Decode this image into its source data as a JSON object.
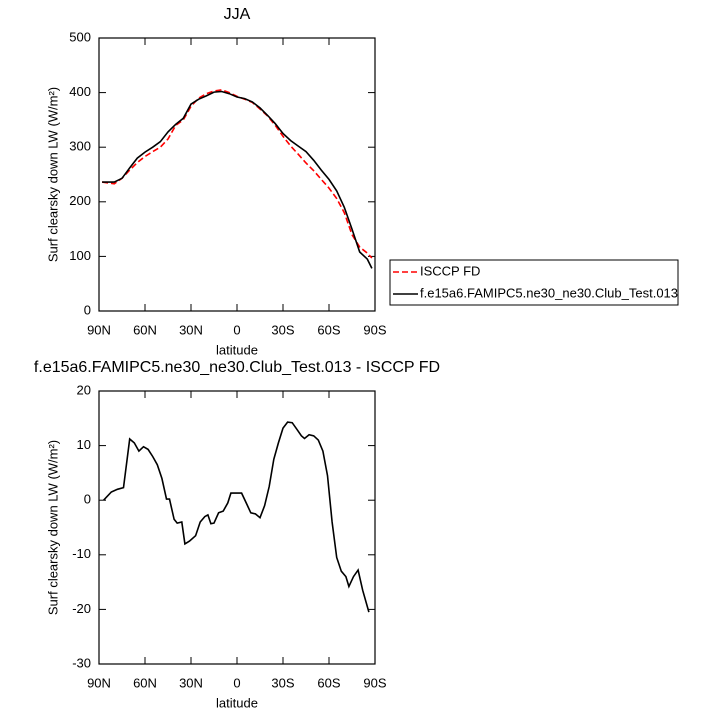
{
  "chart_data": [
    {
      "type": "line",
      "title": "JJA",
      "x_label": "latitude",
      "y_label": "Surf clearsky down LW (W/m²)",
      "x": [
        88,
        80,
        75,
        70,
        65,
        60,
        55,
        50,
        45,
        40,
        35,
        30,
        25,
        20,
        15,
        10,
        5,
        0,
        -5,
        -10,
        -15,
        -20,
        -25,
        -30,
        -35,
        -40,
        -45,
        -50,
        -55,
        -60,
        -65,
        -70,
        -75,
        -80,
        -85,
        -88
      ],
      "series": [
        {
          "name": "ISCCP FD",
          "color": "#ff0000",
          "dash": true,
          "values": [
            236,
            233,
            243,
            258,
            272,
            283,
            292,
            300,
            315,
            340,
            350,
            375,
            390,
            398,
            403,
            405,
            400,
            393,
            388,
            382,
            370,
            357,
            340,
            320,
            302,
            287,
            271,
            257,
            241,
            225,
            206,
            180,
            140,
            117,
            106,
            97
          ]
        },
        {
          "name": "f.e15a6.FAMIPC5.ne30_ne30.Club_Test.013",
          "color": "#000000",
          "dash": false,
          "values": [
            236,
            236,
            243,
            262,
            280,
            291,
            300,
            310,
            328,
            342,
            353,
            379,
            388,
            394,
            401,
            402,
            398,
            392,
            389,
            383,
            372,
            358,
            343,
            325,
            312,
            302,
            292,
            276,
            258,
            241,
            220,
            190,
            150,
            108,
            95,
            78
          ]
        }
      ],
      "xlim": [
        90,
        -90
      ],
      "xticks": [
        {
          "value": 90,
          "label": "90N"
        },
        {
          "value": 60,
          "label": "60N"
        },
        {
          "value": 30,
          "label": "30N"
        },
        0,
        {
          "value": -30,
          "label": "30S"
        },
        {
          "value": -60,
          "label": "60S"
        },
        {
          "value": -90,
          "label": "90S"
        }
      ],
      "ylim": [
        0,
        500
      ],
      "yticks": [
        0,
        100,
        200,
        300,
        400,
        500
      ],
      "legend": "right"
    },
    {
      "type": "line",
      "title": "f.e15a6.FAMIPC5.ne30_ne30.Club_Test.013 - ISCCP FD",
      "x_label": "latitude",
      "y_label": "Surf clearsky down LW (W/m²)",
      "x": [
        87,
        82,
        78,
        74,
        70,
        67,
        64,
        61,
        58,
        55,
        52,
        49,
        46,
        44,
        41,
        39,
        36,
        34,
        31,
        27,
        24,
        21,
        19,
        17,
        15,
        12,
        9,
        6,
        4,
        0,
        -3,
        -6,
        -9,
        -12,
        -15,
        -18,
        -21,
        -24,
        -27,
        -30,
        -33,
        -36,
        -39,
        -42,
        -44,
        -47,
        -50,
        -53,
        -56,
        -59,
        -62,
        -65,
        -68,
        -71,
        -73,
        -76,
        -79,
        -82,
        -86
      ],
      "series": [
        {
          "color": "#000000",
          "dash": false,
          "values": [
            0,
            1.5,
            2.0,
            2.3,
            11.2,
            10.5,
            9.0,
            9.8,
            9.3,
            8.0,
            6.5,
            4.0,
            0.2,
            0.2,
            -3.5,
            -4.2,
            -4.0,
            -8.0,
            -7.5,
            -6.5,
            -4.0,
            -3.0,
            -2.7,
            -4.3,
            -4.2,
            -2.3,
            -2.0,
            -0.5,
            1.3,
            1.3,
            1.3,
            -0.5,
            -2.3,
            -2.5,
            -3.2,
            -1.0,
            2.5,
            7.5,
            10.5,
            13.2,
            14.3,
            14.2,
            13.0,
            11.8,
            11.3,
            12.0,
            11.8,
            11.0,
            9.0,
            4.5,
            -4.0,
            -10.5,
            -13.0,
            -14.0,
            -15.8,
            -14.0,
            -12.8,
            -16.5,
            -20.5
          ]
        }
      ],
      "xlim": [
        90,
        -90
      ],
      "xticks": [
        {
          "value": 90,
          "label": "90N"
        },
        {
          "value": 60,
          "label": "60N"
        },
        {
          "value": 30,
          "label": "30N"
        },
        0,
        {
          "value": -30,
          "label": "30S"
        },
        {
          "value": -60,
          "label": "60S"
        },
        {
          "value": -90,
          "label": "90S"
        }
      ],
      "ylim": [
        -30,
        20
      ],
      "yticks": [
        -30,
        -20,
        -10,
        0,
        10,
        20
      ]
    }
  ]
}
